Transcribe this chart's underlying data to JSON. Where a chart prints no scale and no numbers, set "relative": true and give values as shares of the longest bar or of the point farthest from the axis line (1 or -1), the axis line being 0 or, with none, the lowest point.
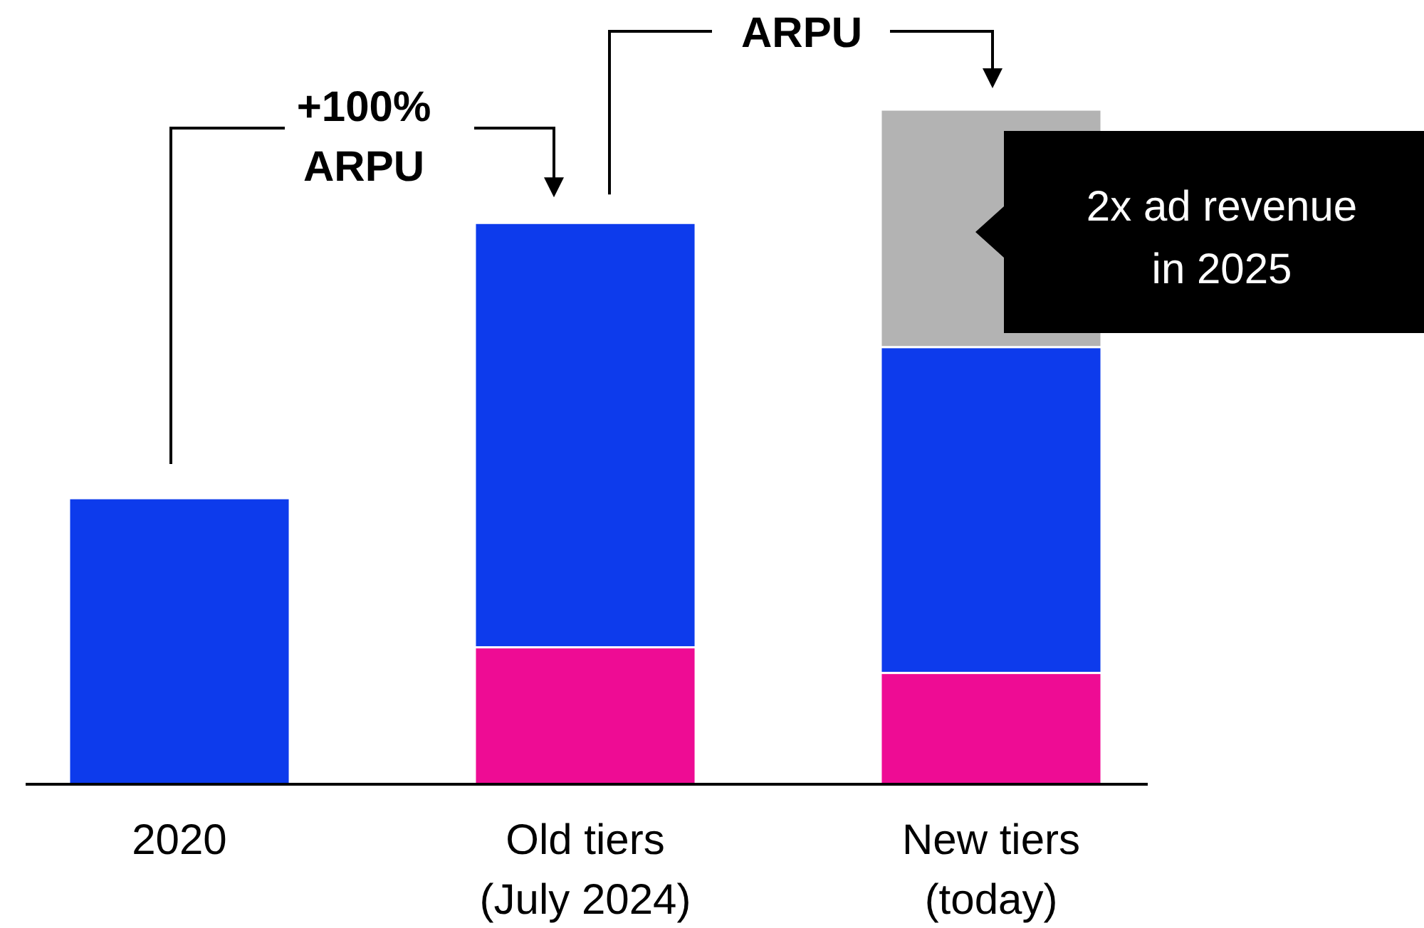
{
  "chart_data": {
    "type": "bar",
    "stacked": true,
    "relative": true,
    "categories": [
      "2020",
      "Old tiers\n(July 2024)",
      "New tiers\n(today)"
    ],
    "series": [
      {
        "color": "#ee0c94",
        "values": [
          null,
          0.203,
          0.165
        ]
      },
      {
        "color": "#0d3bec",
        "values": [
          0.424,
          0.629,
          0.483
        ]
      },
      {
        "color": "#b3b3b3",
        "values": [
          null,
          null,
          0.352
        ]
      }
    ],
    "annotations": [
      "+100%\nARPU",
      "ARPU",
      "2x ad revenue\nin 2025"
    ]
  }
}
